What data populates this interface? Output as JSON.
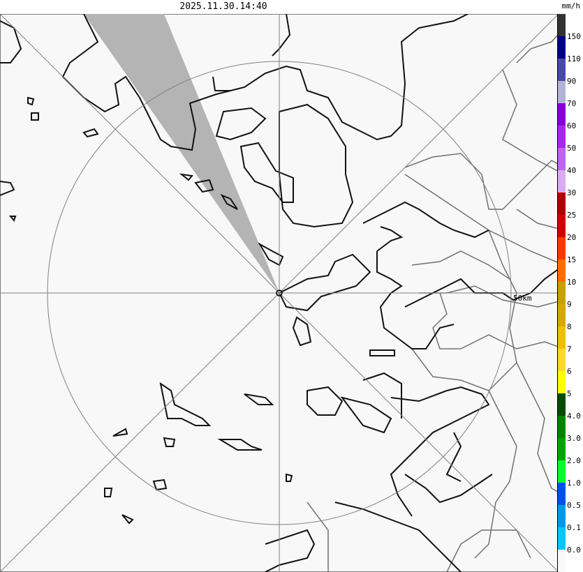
{
  "header": {
    "timestamp": "2025.11.30.14:40",
    "unit": "mm/h"
  },
  "map": {
    "range_ring_label": "50km",
    "background": "#f8f8f8",
    "no_data_wedge_color": "#b4b4b4",
    "coast_color": "#000000",
    "boundary_color": "#707070"
  },
  "legend": {
    "labels": [
      "150",
      "110",
      "90",
      "70",
      "60",
      "50",
      "40",
      "30",
      "25",
      "20",
      "15",
      "10",
      "9",
      "8",
      "7",
      "6",
      "5",
      "4.0",
      "3.0",
      "2.0",
      "1.0",
      "0.5",
      "0.1",
      "0.0"
    ],
    "colors": [
      "#333333",
      "#000088",
      "#4848a8",
      "#b0b4d8",
      "#8800d8",
      "#a828f0",
      "#c064f0",
      "#dcaaf4",
      "#b00000",
      "#d40000",
      "#ff3800",
      "#ff6c00",
      "#c8a000",
      "#d8a800",
      "#f0c000",
      "#ffd828",
      "#ffff00",
      "#004c00",
      "#008400",
      "#00a400",
      "#00ff28",
      "#0050f0",
      "#0098e8",
      "#00c8ff",
      "#f8f8f8"
    ]
  }
}
